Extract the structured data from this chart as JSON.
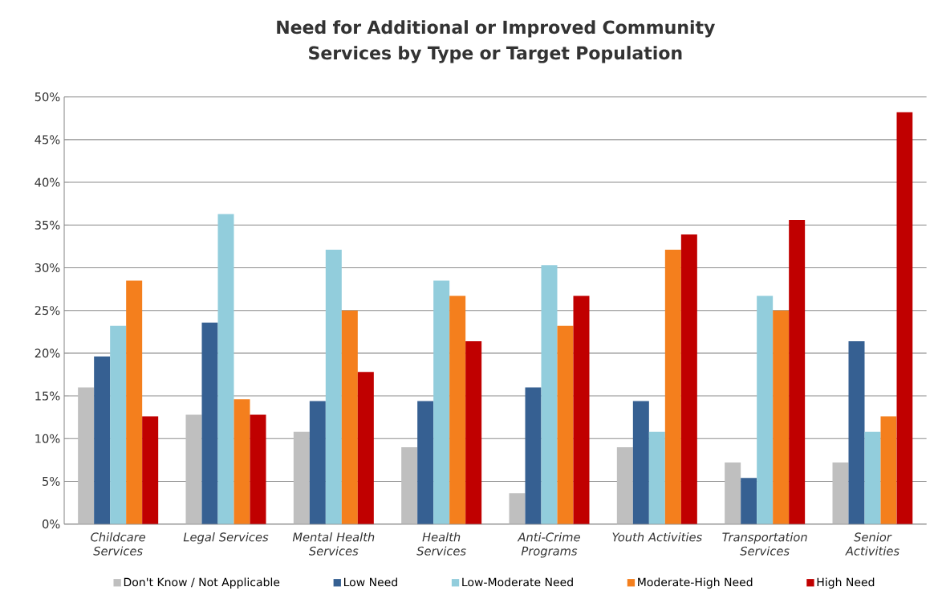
{
  "chart_data": {
    "type": "bar",
    "title": "Need for Additional or Improved Community Services by Type or Target Population",
    "categories": [
      "Childcare Services",
      "Legal Services",
      "Mental Health Services",
      "Health Services",
      "Anti-Crime Programs",
      "Youth Activities",
      "Transportation Services",
      "Senior Activities"
    ],
    "series": [
      {
        "name": "Don't Know / Not Applicable",
        "color": "#bfbfbf",
        "values": [
          16.0,
          12.8,
          10.8,
          9.0,
          3.6,
          9.0,
          7.2,
          7.2
        ]
      },
      {
        "name": "Low Need",
        "color": "#366092",
        "values": [
          19.6,
          23.6,
          14.4,
          14.4,
          16.0,
          14.4,
          5.4,
          21.4
        ]
      },
      {
        "name": "Low-Moderate Need",
        "color": "#92cddc",
        "values": [
          23.2,
          36.3,
          32.1,
          28.5,
          30.3,
          10.8,
          26.7,
          10.8
        ]
      },
      {
        "name": "Moderate-High Need",
        "color": "#f47f1d",
        "values": [
          28.5,
          14.6,
          25.0,
          26.7,
          23.2,
          32.1,
          25.0,
          12.6
        ]
      },
      {
        "name": "High Need",
        "color": "#c00000",
        "values": [
          12.6,
          12.8,
          17.8,
          21.4,
          26.7,
          33.9,
          35.6,
          48.2
        ]
      }
    ],
    "ylim": [
      0,
      50
    ],
    "yticks": [
      {
        "value": 0,
        "label": "0%"
      },
      {
        "value": 5,
        "label": "5%"
      },
      {
        "value": 10,
        "label": "10%"
      },
      {
        "value": 15,
        "label": "15%"
      },
      {
        "value": 20,
        "label": "20%"
      },
      {
        "value": 25,
        "label": "25%"
      },
      {
        "value": 30,
        "label": "30%"
      },
      {
        "value": 35,
        "label": "35%"
      },
      {
        "value": 40,
        "label": "40%"
      },
      {
        "value": 45,
        "label": "45%"
      },
      {
        "value": 50,
        "label": "50%"
      }
    ],
    "grid": "y",
    "legend": "bottom"
  }
}
